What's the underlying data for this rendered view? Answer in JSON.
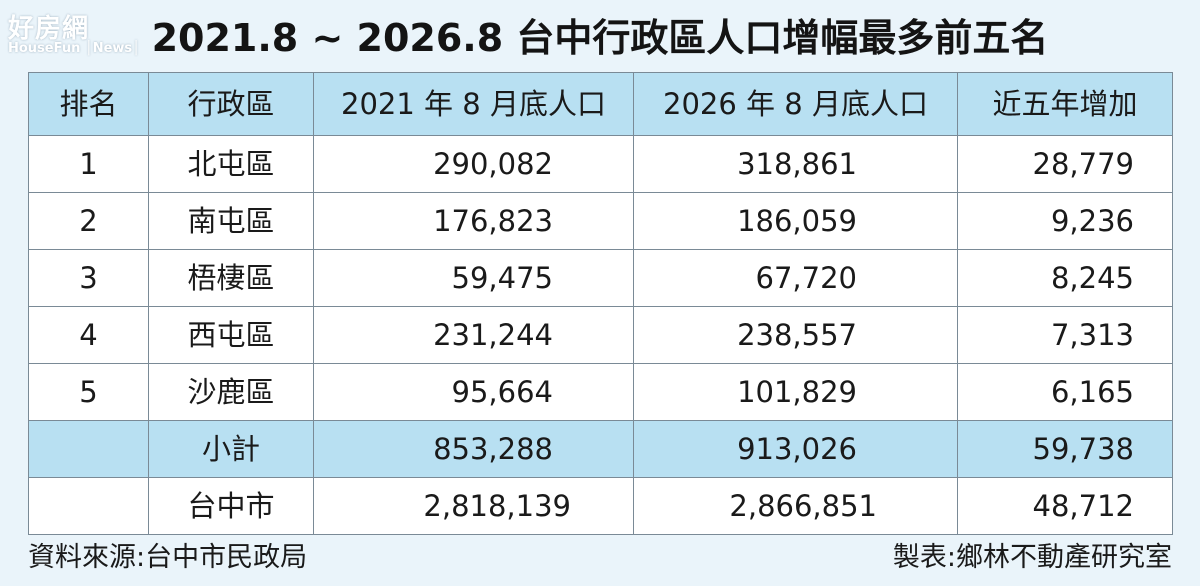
{
  "watermark": {
    "brand": "好房網",
    "sub": "HouseFun │News│"
  },
  "title": "2021.8 ~ 2026.8 台中行政區人口增幅最多前五名",
  "table": {
    "headers": [
      "排名",
      "行政區",
      "2021 年 8 月底人口",
      "2026 年 8 月底人口",
      "近五年增加"
    ],
    "rows": [
      {
        "rank": "1",
        "district": "北屯區",
        "pop2021": "290,082",
        "pop2026": "318,861",
        "increase": "28,779"
      },
      {
        "rank": "2",
        "district": "南屯區",
        "pop2021": "176,823",
        "pop2026": "186,059",
        "increase": "9,236"
      },
      {
        "rank": "3",
        "district": "梧棲區",
        "pop2021": "59,475",
        "pop2026": "67,720",
        "increase": "8,245"
      },
      {
        "rank": "4",
        "district": "西屯區",
        "pop2021": "231,244",
        "pop2026": "238,557",
        "increase": "7,313"
      },
      {
        "rank": "5",
        "district": "沙鹿區",
        "pop2021": "95,664",
        "pop2026": "101,829",
        "increase": "6,165"
      }
    ],
    "subtotal": {
      "label": "小計",
      "pop2021": "853,288",
      "pop2026": "913,026",
      "increase": "59,738"
    },
    "city": {
      "label": "台中市",
      "pop2021": "2,818,139",
      "pop2026": "2,866,851",
      "increase": "48,712"
    }
  },
  "footer": {
    "source": "資料來源:台中市民政局",
    "credit": "製表:鄉林不動產研究室"
  },
  "colors": {
    "background": "#eaf4fa",
    "header_fill": "#b8e0f2",
    "border": "#7a8a96"
  }
}
